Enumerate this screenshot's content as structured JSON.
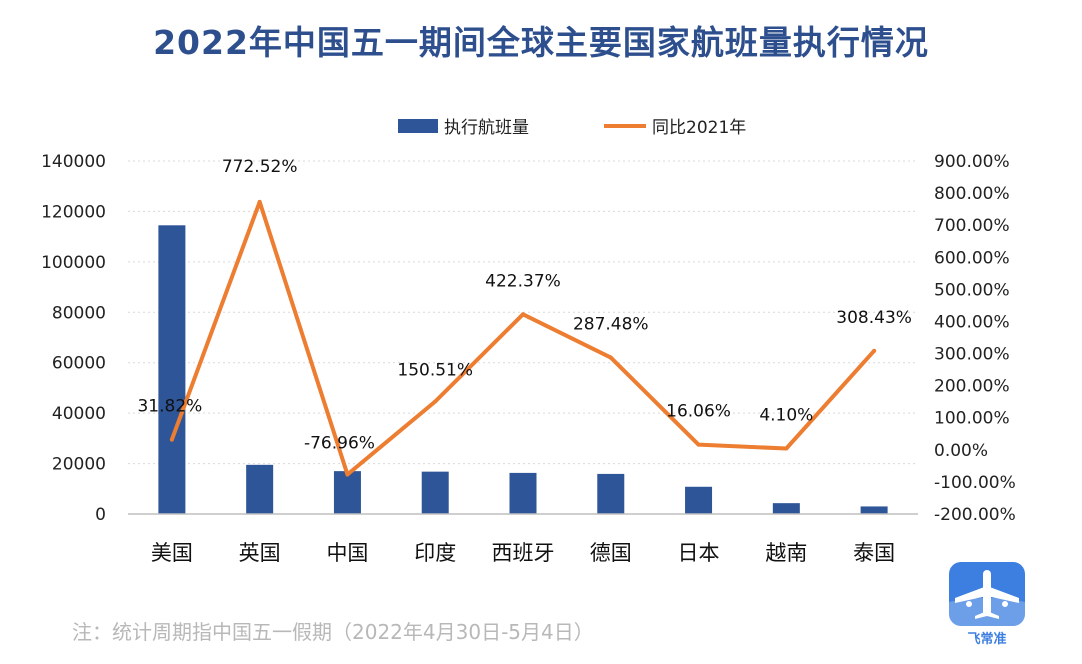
{
  "title": "2022年中国五一期间全球主要国家航班量执行情况",
  "note": "注：统计周期指中国五一假期（2022年4月30日-5月4日）",
  "logo": {
    "text": "飞常准"
  },
  "colors": {
    "title": "#2E4F8E",
    "bar": "#2E5597",
    "line": "#ED7D31",
    "grid": "#D9D9D9",
    "note": "#B8B8B8",
    "logo": "#3C7FE0"
  },
  "chart_data": {
    "type": "bar",
    "categories": [
      "美国",
      "英国",
      "中国",
      "印度",
      "西班牙",
      "德国",
      "日本",
      "越南",
      "泰国"
    ],
    "series": [
      {
        "name": "执行航班量",
        "type": "bar",
        "axis": "left",
        "values": [
          114500,
          19500,
          17000,
          16800,
          16300,
          15900,
          10800,
          4300,
          3000
        ]
      },
      {
        "name": "同比2021年",
        "type": "line",
        "axis": "right",
        "values": [
          31.82,
          772.52,
          -76.96,
          150.51,
          422.37,
          287.48,
          16.06,
          4.1,
          308.43
        ],
        "labels": [
          "31.82%",
          "772.52%",
          "-76.96%",
          "150.51%",
          "422.37%",
          "287.48%",
          "16.06%",
          "4.10%",
          "308.43%"
        ]
      }
    ],
    "left_axis": {
      "min": 0,
      "max": 140000,
      "ticks": [
        "0",
        "20000",
        "40000",
        "60000",
        "80000",
        "100000",
        "120000",
        "140000"
      ]
    },
    "right_axis": {
      "min": -200,
      "max": 900,
      "ticks": [
        "-200.00%",
        "-100.00%",
        "0.00%",
        "100.00%",
        "200.00%",
        "300.00%",
        "400.00%",
        "500.00%",
        "600.00%",
        "700.00%",
        "800.00%",
        "900.00%"
      ]
    },
    "grid": true,
    "legend": "top-center"
  }
}
